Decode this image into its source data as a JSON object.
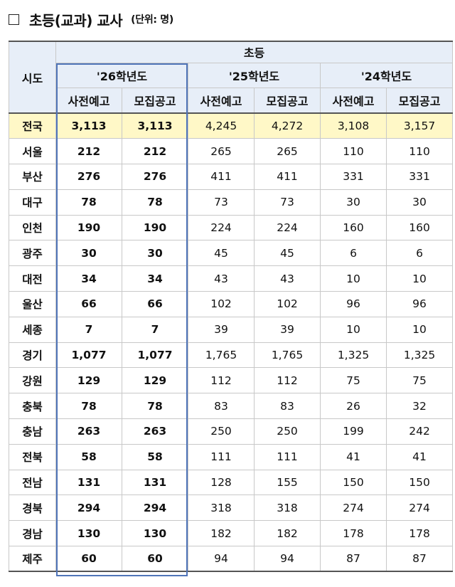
{
  "title": {
    "main": "초등(교과) 교사",
    "unit": "(단위: 명)"
  },
  "table": {
    "region_header": "시도",
    "level_header": "초등",
    "years": [
      "'26학년도",
      "'25학년도",
      "'24학년도"
    ],
    "subheaders": [
      "사전예고",
      "모집공고",
      "사전예고",
      "모집공고",
      "사전예고",
      "모집공고"
    ],
    "rows": [
      {
        "region": "전국",
        "values": [
          "3,113",
          "3,113",
          "4,245",
          "4,272",
          "3,108",
          "3,157"
        ]
      },
      {
        "region": "서울",
        "values": [
          "212",
          "212",
          "265",
          "265",
          "110",
          "110"
        ]
      },
      {
        "region": "부산",
        "values": [
          "276",
          "276",
          "411",
          "411",
          "331",
          "331"
        ]
      },
      {
        "region": "대구",
        "values": [
          "78",
          "78",
          "73",
          "73",
          "30",
          "30"
        ]
      },
      {
        "region": "인천",
        "values": [
          "190",
          "190",
          "224",
          "224",
          "160",
          "160"
        ]
      },
      {
        "region": "광주",
        "values": [
          "30",
          "30",
          "45",
          "45",
          "6",
          "6"
        ]
      },
      {
        "region": "대전",
        "values": [
          "34",
          "34",
          "43",
          "43",
          "10",
          "10"
        ]
      },
      {
        "region": "울산",
        "values": [
          "66",
          "66",
          "102",
          "102",
          "96",
          "96"
        ]
      },
      {
        "region": "세종",
        "values": [
          "7",
          "7",
          "39",
          "39",
          "10",
          "10"
        ]
      },
      {
        "region": "경기",
        "values": [
          "1,077",
          "1,077",
          "1,765",
          "1,765",
          "1,325",
          "1,325"
        ]
      },
      {
        "region": "강원",
        "values": [
          "129",
          "129",
          "112",
          "112",
          "75",
          "75"
        ]
      },
      {
        "region": "충북",
        "values": [
          "78",
          "78",
          "83",
          "83",
          "26",
          "32"
        ]
      },
      {
        "region": "충남",
        "values": [
          "263",
          "263",
          "250",
          "250",
          "199",
          "242"
        ]
      },
      {
        "region": "전북",
        "values": [
          "58",
          "58",
          "111",
          "111",
          "41",
          "41"
        ]
      },
      {
        "region": "전남",
        "values": [
          "131",
          "131",
          "128",
          "155",
          "150",
          "150"
        ]
      },
      {
        "region": "경북",
        "values": [
          "294",
          "294",
          "318",
          "318",
          "274",
          "274"
        ]
      },
      {
        "region": "경남",
        "values": [
          "130",
          "130",
          "182",
          "182",
          "178",
          "178"
        ]
      },
      {
        "region": "제주",
        "values": [
          "60",
          "60",
          "94",
          "94",
          "87",
          "87"
        ]
      }
    ]
  },
  "colors": {
    "header_bg": "#e7eef8",
    "total_row_bg": "#fff8c7",
    "highlight_border": "#4f74b8"
  }
}
